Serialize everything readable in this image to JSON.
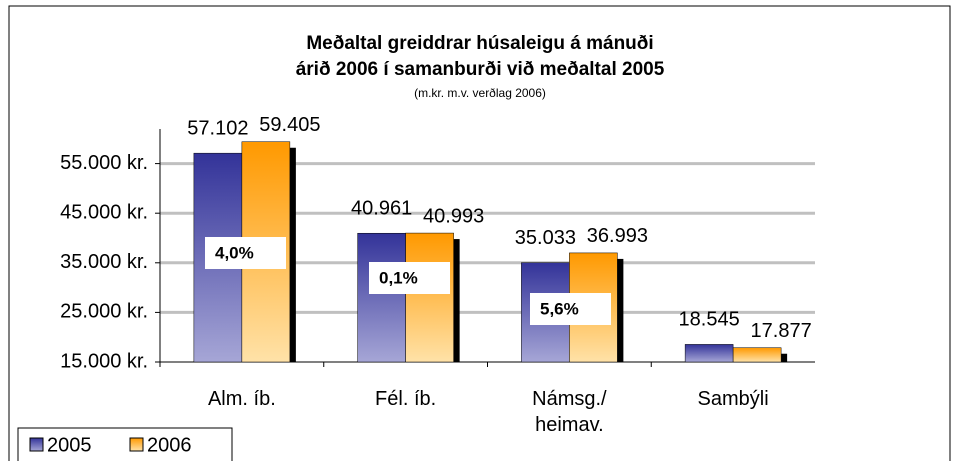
{
  "chart_data": {
    "type": "bar",
    "title": "Meðaltal greiddrar húsaleigu á mánuði",
    "title_line2": "árið 2006 í samanburði við meðaltal 2005",
    "subtitle": "(m.kr. m.v. verðlag 2006)",
    "categories": [
      "Alm. íb.",
      "Fél. íb.",
      "Námsg./\nheimav.",
      "Sambýli"
    ],
    "series": [
      {
        "name": "2005",
        "color": "#333399",
        "values": [
          57102,
          40961,
          35033,
          18545
        ],
        "value_labels": [
          "57.102",
          "40.961",
          "35.033",
          "18.545"
        ]
      },
      {
        "name": "2006",
        "color": "#ff9900",
        "values": [
          59405,
          40993,
          36993,
          17877
        ],
        "value_labels": [
          "59.405",
          "40.993",
          "36.993",
          "17.877"
        ]
      }
    ],
    "annotations": [
      "4,0%",
      "0,1%",
      "5,6%"
    ],
    "ylim": [
      15000,
      65000
    ],
    "yticks": [
      {
        "value": 15000,
        "label": "15.000 kr."
      },
      {
        "value": 25000,
        "label": "25.000 kr."
      },
      {
        "value": 35000,
        "label": "35.000 kr."
      },
      {
        "value": 45000,
        "label": "45.000 kr."
      },
      {
        "value": 55000,
        "label": "55.000 kr."
      }
    ],
    "grid": true,
    "legend": "bottom-left"
  }
}
